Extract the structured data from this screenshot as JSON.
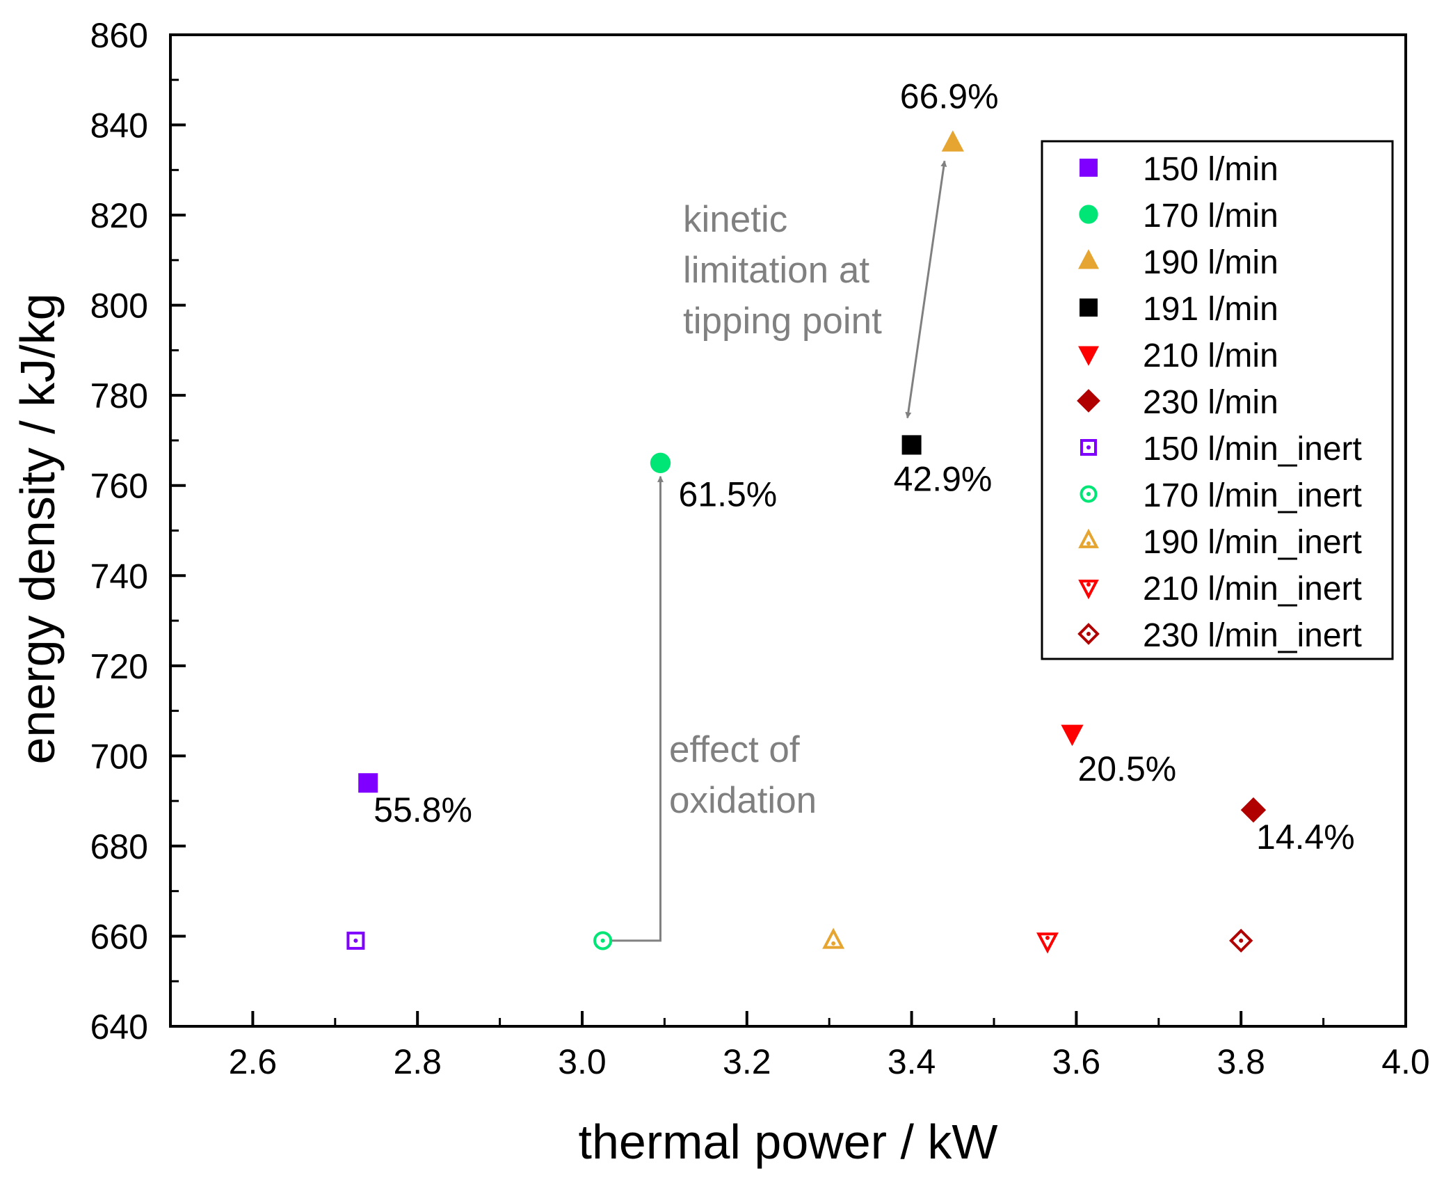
{
  "chart_data": {
    "type": "scatter",
    "xlabel": "thermal power / kW",
    "ylabel": "energy density / kJ/kg",
    "xlim": [
      2.5,
      4.0
    ],
    "ylim": [
      640,
      860
    ],
    "xticks": [
      2.6,
      2.8,
      3.0,
      3.2,
      3.4,
      3.6,
      3.8,
      4.0
    ],
    "xtick_labels": [
      "2.6",
      "2.8",
      "3.0",
      "3.2",
      "3.4",
      "3.6",
      "3.8",
      "4.0"
    ],
    "yticks": [
      640,
      660,
      680,
      700,
      720,
      740,
      760,
      780,
      800,
      820,
      840,
      860
    ],
    "ytick_labels": [
      "640",
      "660",
      "680",
      "700",
      "720",
      "740",
      "760",
      "780",
      "800",
      "820",
      "840",
      "860"
    ],
    "grid": false,
    "legend_position": "top-right",
    "series": [
      {
        "name": "150 l/min",
        "marker": "square",
        "filled": true,
        "color": "#7f00ff",
        "x": [
          2.74
        ],
        "y": [
          694
        ],
        "labels": [
          "55.8%"
        ]
      },
      {
        "name": "170 l/min",
        "marker": "circle",
        "filled": true,
        "color": "#00e676",
        "x": [
          3.095
        ],
        "y": [
          765
        ],
        "labels": [
          "61.5%"
        ]
      },
      {
        "name": "190 l/min",
        "marker": "triangle-up",
        "filled": true,
        "color": "#e6a531",
        "x": [
          3.45
        ],
        "y": [
          836
        ],
        "labels": [
          "66.9%"
        ]
      },
      {
        "name": "191 l/min",
        "marker": "square",
        "filled": true,
        "color": "#000000",
        "x": [
          3.4
        ],
        "y": [
          769
        ],
        "labels": [
          "42.9%"
        ]
      },
      {
        "name": "210 l/min",
        "marker": "triangle-down",
        "filled": true,
        "color": "#ff0000",
        "x": [
          3.595
        ],
        "y": [
          705
        ],
        "labels": [
          "20.5%"
        ]
      },
      {
        "name": "230 l/min",
        "marker": "diamond",
        "filled": true,
        "color": "#b00000",
        "x": [
          3.815
        ],
        "y": [
          688
        ],
        "labels": [
          "14.4%"
        ]
      },
      {
        "name": "150 l/min_inert",
        "marker": "square",
        "filled": false,
        "color": "#7f00ff",
        "x": [
          2.725
        ],
        "y": [
          659
        ],
        "labels": [
          ""
        ]
      },
      {
        "name": "170 l/min_inert",
        "marker": "circle",
        "filled": false,
        "color": "#00e676",
        "x": [
          3.025
        ],
        "y": [
          659
        ],
        "labels": [
          ""
        ]
      },
      {
        "name": "190 l/min_inert",
        "marker": "triangle-up",
        "filled": false,
        "color": "#e6a531",
        "x": [
          3.305
        ],
        "y": [
          659
        ],
        "labels": [
          ""
        ]
      },
      {
        "name": "210 l/min_inert",
        "marker": "triangle-down",
        "filled": false,
        "color": "#ff0000",
        "x": [
          3.565
        ],
        "y": [
          659
        ],
        "labels": [
          ""
        ]
      },
      {
        "name": "230 l/min_inert",
        "marker": "diamond",
        "filled": false,
        "color": "#b00000",
        "x": [
          3.8
        ],
        "y": [
          659
        ],
        "labels": [
          ""
        ]
      }
    ],
    "annotations": [
      {
        "name": "kinetic-limitation-annotation",
        "lines": [
          "kinetic",
          "limitation at",
          "tipping point"
        ],
        "color": "#808080"
      },
      {
        "name": "oxidation-annotation",
        "lines": [
          "effect of",
          "oxidation"
        ],
        "color": "#808080"
      }
    ],
    "arrows": [
      {
        "name": "oxidation-arrow",
        "color": "#808080",
        "points": [
          [
            3.035,
            659
          ],
          [
            3.095,
            659
          ],
          [
            3.095,
            762
          ]
        ],
        "heads": [
          "end"
        ]
      },
      {
        "name": "kinetic-arrow",
        "color": "#808080",
        "points": [
          [
            3.395,
            775
          ],
          [
            3.44,
            832
          ]
        ],
        "heads": [
          "start",
          "end"
        ]
      }
    ]
  }
}
